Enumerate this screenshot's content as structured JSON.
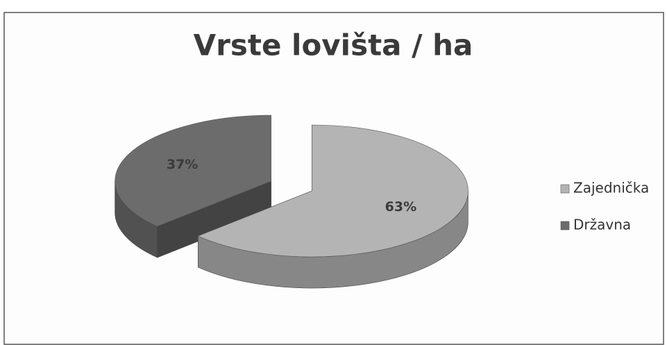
{
  "chart_data": {
    "type": "pie",
    "title": "Vrste lovišta / ha",
    "categories": [
      "Zajednička",
      "Državna"
    ],
    "values": [
      63,
      37
    ],
    "value_labels": [
      "63%",
      "37%"
    ],
    "colors": [
      "#b4b4b4",
      "#6c6c6c"
    ],
    "legend": "right"
  }
}
